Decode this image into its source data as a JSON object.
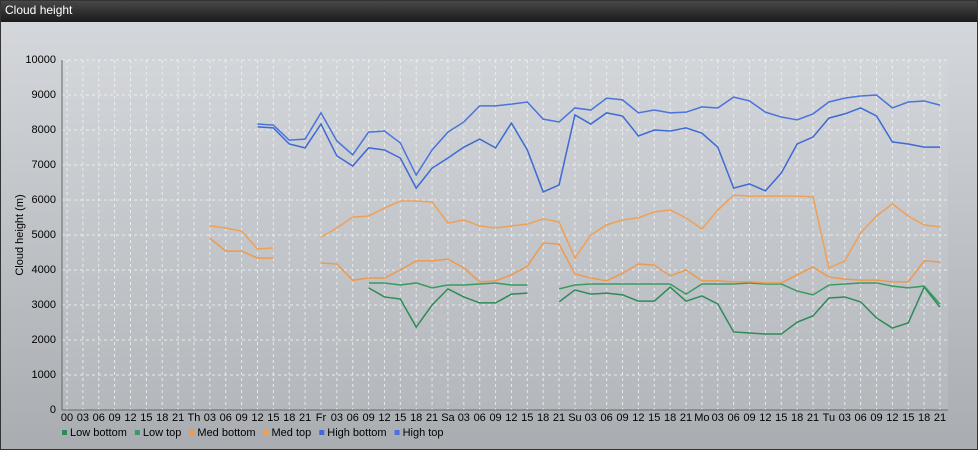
{
  "chart_data": {
    "type": "line",
    "title": "Cloud height",
    "ylabel": "Cloud height (m)",
    "ylim": [
      0,
      10000
    ],
    "yticks": [
      0,
      1000,
      2000,
      3000,
      4000,
      5000,
      6000,
      7000,
      8000,
      9000,
      10000
    ],
    "grid": true,
    "legend": "bottom",
    "categories": [
      "00",
      "03",
      "06",
      "09",
      "12",
      "15",
      "18",
      "21",
      "Th",
      "03",
      "06",
      "09",
      "12",
      "15",
      "18",
      "21",
      "Fr",
      "03",
      "06",
      "09",
      "12",
      "15",
      "18",
      "21",
      "Sa",
      "03",
      "06",
      "09",
      "12",
      "15",
      "18",
      "21",
      "Su",
      "03",
      "06",
      "09",
      "12",
      "15",
      "18",
      "21",
      "Mo",
      "03",
      "06",
      "09",
      "12",
      "15",
      "18",
      "21",
      "Tu",
      "03",
      "06",
      "09",
      "12",
      "15",
      "18",
      "21"
    ],
    "series": [
      {
        "name": "Low bottom",
        "color": "#2e8b57",
        "values": [
          null,
          null,
          null,
          null,
          null,
          null,
          null,
          null,
          null,
          null,
          null,
          null,
          null,
          null,
          null,
          null,
          null,
          null,
          null,
          3490,
          3230,
          3170,
          2370,
          3000,
          3460,
          3230,
          3060,
          3060,
          3310,
          3340,
          null,
          3090,
          3430,
          3310,
          3340,
          3290,
          3110,
          3110,
          3510,
          3110,
          3260,
          3030,
          2230,
          2200,
          2170,
          2170,
          2510,
          2690,
          3200,
          3230,
          3090,
          2630,
          2340,
          2490,
          3510,
          2940
        ]
      },
      {
        "name": "Low top",
        "color": "#3a9a60",
        "values": [
          null,
          null,
          null,
          null,
          null,
          null,
          null,
          null,
          null,
          null,
          null,
          null,
          null,
          null,
          null,
          null,
          null,
          null,
          null,
          3630,
          3630,
          3570,
          3630,
          3490,
          3570,
          3570,
          3600,
          3630,
          3570,
          3570,
          null,
          3460,
          3570,
          3600,
          3600,
          3600,
          3600,
          3600,
          3600,
          3310,
          3600,
          3600,
          3600,
          3630,
          3600,
          3600,
          3400,
          3290,
          3570,
          3600,
          3630,
          3630,
          3540,
          3490,
          3540,
          3030
        ]
      },
      {
        "name": "Med bottom",
        "color": "#ee9a4d",
        "values": [
          null,
          null,
          null,
          null,
          null,
          null,
          null,
          null,
          null,
          4910,
          4540,
          4540,
          4340,
          4340,
          null,
          null,
          4200,
          4170,
          3710,
          3770,
          3770,
          4000,
          4260,
          4260,
          4310,
          4060,
          3660,
          3690,
          3860,
          4110,
          4770,
          4740,
          3890,
          3770,
          3690,
          3910,
          4170,
          4140,
          3830,
          4000,
          3690,
          3690,
          3660,
          3660,
          3630,
          3630,
          3860,
          4090,
          3800,
          3740,
          3710,
          3710,
          3660,
          3660,
          4260,
          4230
        ]
      },
      {
        "name": "Med top",
        "color": "#f0a055",
        "values": [
          null,
          null,
          null,
          null,
          null,
          null,
          null,
          null,
          null,
          5260,
          5200,
          5110,
          4600,
          4630,
          null,
          null,
          4940,
          5200,
          5510,
          5540,
          5770,
          5970,
          5970,
          5940,
          5340,
          5430,
          5260,
          5200,
          5260,
          5310,
          5460,
          5370,
          4340,
          5000,
          5290,
          5430,
          5490,
          5660,
          5710,
          5490,
          5170,
          5710,
          6140,
          6110,
          6110,
          6110,
          6110,
          6090,
          4060,
          4260,
          5060,
          5540,
          5890,
          5540,
          5290,
          5230
        ]
      },
      {
        "name": "High bottom",
        "color": "#3d6ad6",
        "values": [
          null,
          null,
          null,
          null,
          null,
          null,
          null,
          null,
          null,
          null,
          null,
          null,
          8090,
          8060,
          7600,
          7490,
          8170,
          7260,
          6970,
          7490,
          7430,
          7200,
          6340,
          6910,
          7200,
          7510,
          7740,
          7490,
          8200,
          7430,
          6230,
          6430,
          8430,
          8170,
          8490,
          8400,
          7830,
          8000,
          7970,
          8060,
          7910,
          7510,
          6340,
          6460,
          6260,
          6770,
          7600,
          7800,
          8340,
          8460,
          8630,
          8400,
          7660,
          7600,
          7510,
          7510
        ]
      },
      {
        "name": "High top",
        "color": "#4a74dc",
        "values": [
          null,
          null,
          null,
          null,
          null,
          null,
          null,
          null,
          null,
          null,
          null,
          null,
          8170,
          8140,
          7710,
          7740,
          8490,
          7690,
          7290,
          7940,
          7970,
          7630,
          6710,
          7430,
          7940,
          8230,
          8690,
          8690,
          8740,
          8800,
          8310,
          8230,
          8630,
          8570,
          8910,
          8860,
          8490,
          8570,
          8490,
          8510,
          8660,
          8630,
          8940,
          8830,
          8510,
          8370,
          8290,
          8460,
          8800,
          8910,
          8970,
          9000,
          8630,
          8800,
          8830,
          8710
        ]
      }
    ]
  }
}
